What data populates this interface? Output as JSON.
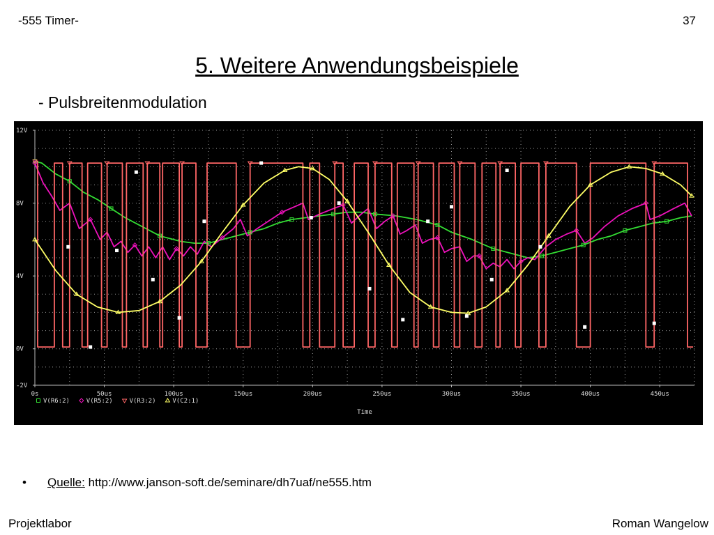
{
  "header": {
    "left": "-555 Timer-",
    "page_number": "37"
  },
  "title": "5. Weitere Anwendungsbeispiele",
  "subtitle": "- Pulsbreitenmodulation",
  "source": {
    "bullet": "•",
    "label": "Quelle:",
    "url": "http://www.janson-soft.de/seminare/dh7uaf/ne555.htm"
  },
  "footer": {
    "left": "Projektlabor",
    "right": "Roman Wangelow"
  },
  "colors": {
    "plot_background": "#000000",
    "grid": "#9a9a9a",
    "v_r6": "#33dd33",
    "v_r5": "#ee11bb",
    "v_r3": "#ff6666",
    "v_c2": "#ffff66",
    "marker_white": "#ffffff"
  },
  "chart_data": {
    "type": "line",
    "x_unit": "us",
    "xlim": [
      0,
      475
    ],
    "ylim": [
      -2,
      12
    ],
    "x_ticks": [
      "0s",
      "50us",
      "100us",
      "150us",
      "200us",
      "250us",
      "300us",
      "350us",
      "400us",
      "450us"
    ],
    "x_tick_values": [
      0,
      50,
      100,
      150,
      200,
      250,
      300,
      350,
      400,
      450
    ],
    "y_ticks": [
      "12V",
      "8V",
      "4V",
      "0V",
      "-2V"
    ],
    "y_tick_values": [
      12,
      8,
      4,
      0,
      -2
    ],
    "xlabel": "Time",
    "grid": true,
    "legend_position": "bottom-left",
    "series": [
      {
        "name": "V(R6:2)",
        "marker": "square",
        "points": [
          [
            0,
            10.3
          ],
          [
            5,
            10.2
          ],
          [
            15,
            9.6
          ],
          [
            25,
            9.2
          ],
          [
            35,
            8.6
          ],
          [
            45,
            8.2
          ],
          [
            55,
            7.7
          ],
          [
            65,
            7.2
          ],
          [
            75,
            6.8
          ],
          [
            90,
            6.2
          ],
          [
            105,
            5.9
          ],
          [
            115,
            5.8
          ],
          [
            125,
            5.8
          ],
          [
            135,
            6.0
          ],
          [
            145,
            6.2
          ],
          [
            155,
            6.4
          ],
          [
            165,
            6.6
          ],
          [
            175,
            6.9
          ],
          [
            185,
            7.1
          ],
          [
            195,
            7.2
          ],
          [
            205,
            7.3
          ],
          [
            215,
            7.4
          ],
          [
            225,
            7.5
          ],
          [
            235,
            7.5
          ],
          [
            245,
            7.4
          ],
          [
            260,
            7.3
          ],
          [
            275,
            7.1
          ],
          [
            290,
            6.8
          ],
          [
            300,
            6.4
          ],
          [
            315,
            6.0
          ],
          [
            330,
            5.5
          ],
          [
            345,
            5.2
          ],
          [
            355,
            5.0
          ],
          [
            365,
            5.1
          ],
          [
            375,
            5.3
          ],
          [
            385,
            5.5
          ],
          [
            395,
            5.7
          ],
          [
            405,
            6.0
          ],
          [
            415,
            6.2
          ],
          [
            425,
            6.5
          ],
          [
            435,
            6.7
          ],
          [
            445,
            6.9
          ],
          [
            455,
            7.0
          ],
          [
            465,
            7.2
          ],
          [
            473,
            7.3
          ]
        ]
      },
      {
        "name": "V(R5:2)",
        "marker": "diamond",
        "points": [
          [
            0,
            10.2
          ],
          [
            6,
            9.1
          ],
          [
            12,
            8.4
          ],
          [
            18,
            7.6
          ],
          [
            25,
            8.0
          ],
          [
            32,
            6.6
          ],
          [
            40,
            7.1
          ],
          [
            47,
            6.0
          ],
          [
            52,
            6.4
          ],
          [
            57,
            5.6
          ],
          [
            62,
            5.9
          ],
          [
            67,
            5.3
          ],
          [
            72,
            5.7
          ],
          [
            77,
            5.1
          ],
          [
            82,
            5.6
          ],
          [
            87,
            5.0
          ],
          [
            92,
            5.6
          ],
          [
            97,
            4.9
          ],
          [
            102,
            5.5
          ],
          [
            107,
            5.1
          ],
          [
            112,
            5.6
          ],
          [
            117,
            5.2
          ],
          [
            122,
            5.9
          ],
          [
            127,
            5.6
          ],
          [
            135,
            6.1
          ],
          [
            143,
            6.6
          ],
          [
            148,
            7.1
          ],
          [
            153,
            6.2
          ],
          [
            160,
            6.6
          ],
          [
            170,
            7.1
          ],
          [
            178,
            7.5
          ],
          [
            187,
            7.8
          ],
          [
            193,
            8.0
          ],
          [
            197,
            7.1
          ],
          [
            205,
            7.4
          ],
          [
            215,
            7.7
          ],
          [
            222,
            7.9
          ],
          [
            228,
            6.9
          ],
          [
            235,
            7.4
          ],
          [
            240,
            7.7
          ],
          [
            246,
            6.6
          ],
          [
            252,
            7.0
          ],
          [
            258,
            7.3
          ],
          [
            263,
            6.3
          ],
          [
            268,
            6.5
          ],
          [
            274,
            6.8
          ],
          [
            279,
            5.8
          ],
          [
            284,
            6.0
          ],
          [
            290,
            6.1
          ],
          [
            295,
            5.3
          ],
          [
            300,
            5.5
          ],
          [
            306,
            5.6
          ],
          [
            311,
            4.8
          ],
          [
            316,
            5.1
          ],
          [
            320,
            5.1
          ],
          [
            325,
            4.4
          ],
          [
            330,
            4.7
          ],
          [
            335,
            4.5
          ],
          [
            340,
            4.9
          ],
          [
            345,
            4.4
          ],
          [
            350,
            4.8
          ],
          [
            355,
            5.0
          ],
          [
            360,
            4.9
          ],
          [
            368,
            5.6
          ],
          [
            375,
            6.0
          ],
          [
            383,
            6.3
          ],
          [
            390,
            6.5
          ],
          [
            396,
            5.8
          ],
          [
            402,
            6.1
          ],
          [
            410,
            6.7
          ],
          [
            420,
            7.3
          ],
          [
            430,
            7.7
          ],
          [
            440,
            8.0
          ],
          [
            443,
            7.1
          ],
          [
            450,
            7.3
          ],
          [
            460,
            7.7
          ],
          [
            468,
            8.0
          ],
          [
            473,
            7.3
          ]
        ]
      },
      {
        "name": "V(R3:2)",
        "marker": "triangle-down",
        "points": [
          [
            0,
            10.3
          ],
          [
            2,
            10.3
          ],
          [
            2,
            0.1
          ],
          [
            14,
            0.1
          ],
          [
            14,
            10.2
          ],
          [
            20,
            10.2
          ],
          [
            20,
            0.1
          ],
          [
            25,
            0.1
          ],
          [
            25,
            10.2
          ],
          [
            34,
            10.2
          ],
          [
            34,
            0.1
          ],
          [
            38,
            0.1
          ],
          [
            38,
            10.2
          ],
          [
            48,
            10.2
          ],
          [
            48,
            0.1
          ],
          [
            52,
            0.1
          ],
          [
            52,
            10.2
          ],
          [
            63,
            10.2
          ],
          [
            63,
            0.1
          ],
          [
            66,
            0.1
          ],
          [
            66,
            10.2
          ],
          [
            78,
            10.2
          ],
          [
            78,
            0.1
          ],
          [
            81,
            0.1
          ],
          [
            81,
            10.2
          ],
          [
            90,
            10.2
          ],
          [
            90,
            0.1
          ],
          [
            92,
            0.1
          ],
          [
            92,
            10.2
          ],
          [
            104,
            10.2
          ],
          [
            104,
            0.1
          ],
          [
            106,
            0.1
          ],
          [
            106,
            10.2
          ],
          [
            116,
            10.2
          ],
          [
            116,
            0.1
          ],
          [
            124,
            0.1
          ],
          [
            124,
            10.2
          ],
          [
            145,
            10.2
          ],
          [
            145,
            0.1
          ],
          [
            155,
            0.1
          ],
          [
            155,
            10.2
          ],
          [
            193,
            10.2
          ],
          [
            193,
            0.1
          ],
          [
            198,
            0.1
          ],
          [
            198,
            10.2
          ],
          [
            205,
            10.2
          ],
          [
            205,
            0.1
          ],
          [
            216,
            0.1
          ],
          [
            216,
            10.2
          ],
          [
            222,
            10.2
          ],
          [
            222,
            0.1
          ],
          [
            230,
            0.1
          ],
          [
            230,
            10.2
          ],
          [
            240,
            10.2
          ],
          [
            240,
            0.1
          ],
          [
            245,
            0.1
          ],
          [
            245,
            10.2
          ],
          [
            257,
            10.2
          ],
          [
            257,
            0.1
          ],
          [
            261,
            0.1
          ],
          [
            261,
            10.2
          ],
          [
            273,
            10.2
          ],
          [
            273,
            0.1
          ],
          [
            276,
            0.1
          ],
          [
            276,
            10.2
          ],
          [
            287,
            10.2
          ],
          [
            287,
            0.1
          ],
          [
            291,
            0.1
          ],
          [
            291,
            10.2
          ],
          [
            302,
            10.2
          ],
          [
            302,
            0.1
          ],
          [
            306,
            0.1
          ],
          [
            306,
            10.2
          ],
          [
            317,
            10.2
          ],
          [
            317,
            0.1
          ],
          [
            322,
            0.1
          ],
          [
            322,
            10.2
          ],
          [
            332,
            10.2
          ],
          [
            332,
            0.1
          ],
          [
            335,
            0.1
          ],
          [
            335,
            10.2
          ],
          [
            346,
            10.2
          ],
          [
            346,
            0.1
          ],
          [
            350,
            0.1
          ],
          [
            350,
            10.2
          ],
          [
            363,
            10.2
          ],
          [
            363,
            0.1
          ],
          [
            368,
            0.1
          ],
          [
            368,
            10.2
          ],
          [
            390,
            10.2
          ],
          [
            390,
            0.1
          ],
          [
            400,
            0.1
          ],
          [
            400,
            10.2
          ],
          [
            440,
            10.2
          ],
          [
            440,
            0.1
          ],
          [
            446,
            0.1
          ],
          [
            446,
            10.2
          ],
          [
            470,
            10.2
          ],
          [
            470,
            0.1
          ],
          [
            474,
            0.1
          ]
        ]
      },
      {
        "name": "V(C2:1)",
        "marker": "triangle-up",
        "points": [
          [
            0,
            6.0
          ],
          [
            15,
            4.3
          ],
          [
            30,
            3.0
          ],
          [
            45,
            2.3
          ],
          [
            60,
            2.0
          ],
          [
            75,
            2.1
          ],
          [
            90,
            2.6
          ],
          [
            105,
            3.5
          ],
          [
            120,
            4.8
          ],
          [
            135,
            6.4
          ],
          [
            150,
            7.9
          ],
          [
            165,
            9.1
          ],
          [
            180,
            9.8
          ],
          [
            190,
            10.0
          ],
          [
            200,
            9.9
          ],
          [
            212,
            9.3
          ],
          [
            225,
            8.1
          ],
          [
            240,
            6.4
          ],
          [
            255,
            4.6
          ],
          [
            270,
            3.1
          ],
          [
            285,
            2.3
          ],
          [
            300,
            2.0
          ],
          [
            312,
            1.95
          ],
          [
            325,
            2.3
          ],
          [
            340,
            3.2
          ],
          [
            355,
            4.6
          ],
          [
            370,
            6.2
          ],
          [
            385,
            7.8
          ],
          [
            400,
            9.0
          ],
          [
            415,
            9.7
          ],
          [
            428,
            10.0
          ],
          [
            440,
            9.9
          ],
          [
            452,
            9.6
          ],
          [
            465,
            9.0
          ],
          [
            473,
            8.4
          ]
        ]
      },
      {
        "name": "",
        "marker": "white-square",
        "points": [
          [
            24,
            5.6
          ],
          [
            40,
            0.1
          ],
          [
            59,
            5.4
          ],
          [
            73,
            9.7
          ],
          [
            85,
            3.8
          ],
          [
            104,
            1.7
          ],
          [
            122,
            7.0
          ],
          [
            163,
            10.2
          ],
          [
            199,
            7.2
          ],
          [
            219,
            8.0
          ],
          [
            241,
            3.3
          ],
          [
            265,
            1.6
          ],
          [
            283,
            7.0
          ],
          [
            300,
            7.8
          ],
          [
            311,
            1.8
          ],
          [
            329,
            3.8
          ],
          [
            340,
            9.8
          ],
          [
            364,
            5.6
          ],
          [
            396,
            1.2
          ],
          [
            446,
            1.4
          ]
        ]
      }
    ]
  }
}
